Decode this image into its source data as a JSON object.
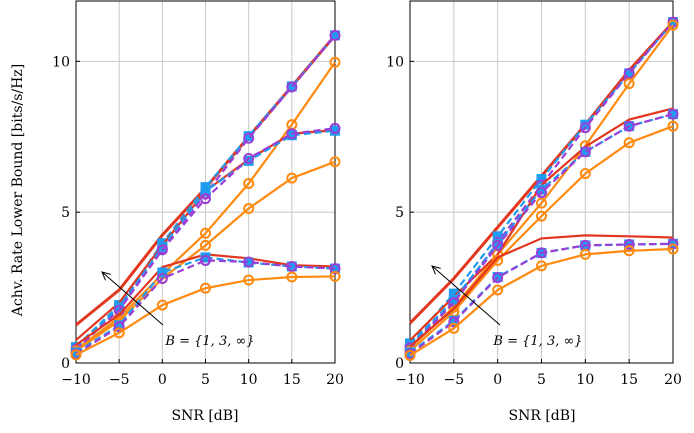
{
  "ylabel": "Achv. Rate Lower Bound [bits/s/Hz]",
  "colors": {
    "red": "#e2361f",
    "blue": "#1e9cf0",
    "purple": "#9a3fd6",
    "orange": "#ff8a10"
  },
  "chart_data": [
    {
      "type": "line",
      "xlabel": "SNR [dB]",
      "x": [
        -10,
        -5,
        0,
        5,
        10,
        15,
        20
      ],
      "xlim": [
        -10,
        20
      ],
      "ylim": [
        0,
        12
      ],
      "xticks": [
        "−10",
        "−5",
        "0",
        "5",
        "10",
        "15",
        "20"
      ],
      "yticks": [
        "0",
        "5",
        "10"
      ],
      "grid": true,
      "annotation": "B = {1, 3, ∞}",
      "series": [
        {
          "style": "red-solid",
          "values": [
            1.26,
            2.42,
            4.24,
            5.8,
            7.5,
            9.17,
            10.86
          ]
        },
        {
          "style": "blue-dashed-square",
          "values": [
            0.53,
            1.92,
            3.97,
            5.83,
            7.52,
            9.17,
            10.86
          ]
        },
        {
          "style": "purple-dashed-circle",
          "values": [
            0.45,
            1.8,
            3.8,
            5.6,
            7.45,
            9.15,
            10.86
          ]
        },
        {
          "style": "orange-solid-circle",
          "values": [
            0.45,
            1.5,
            2.95,
            4.3,
            5.95,
            7.9,
            9.97
          ]
        },
        {
          "style": "red-solid",
          "values": [
            0.76,
            2.0,
            3.9,
            5.7,
            6.75,
            7.6,
            7.72
          ]
        },
        {
          "style": "blue-dashed-square",
          "values": [
            0.5,
            1.85,
            3.85,
            5.7,
            6.7,
            7.55,
            7.7
          ]
        },
        {
          "style": "purple-dashed-circle",
          "values": [
            0.45,
            1.75,
            3.75,
            5.45,
            6.78,
            7.6,
            7.78
          ]
        },
        {
          "style": "orange-solid-circle",
          "values": [
            0.4,
            1.4,
            2.8,
            3.9,
            5.12,
            6.13,
            6.67
          ]
        },
        {
          "style": "red-solid",
          "values": [
            0.6,
            1.6,
            3.18,
            3.6,
            3.47,
            3.24,
            3.2
          ]
        },
        {
          "style": "blue-dashed-square",
          "values": [
            0.35,
            1.25,
            3.0,
            3.5,
            3.33,
            3.2,
            3.13
          ]
        },
        {
          "style": "purple-dashed-circle",
          "values": [
            0.3,
            1.2,
            2.8,
            3.4,
            3.35,
            3.2,
            3.13
          ]
        },
        {
          "style": "orange-solid-circle",
          "values": [
            0.27,
            1.0,
            1.92,
            2.48,
            2.75,
            2.85,
            2.87
          ]
        }
      ]
    },
    {
      "type": "line",
      "xlabel": "SNR [dB]",
      "x": [
        -10,
        -5,
        0,
        5,
        10,
        15,
        20
      ],
      "xlim": [
        -10,
        20
      ],
      "ylim": [
        0,
        12
      ],
      "xticks": [
        "−10",
        "−5",
        "0",
        "5",
        "10",
        "15",
        "20"
      ],
      "yticks": [
        "0",
        "5",
        "10"
      ],
      "grid": true,
      "annotation": "B = {1, 3, ∞}",
      "series": [
        {
          "style": "red-solid",
          "values": [
            1.32,
            2.8,
            4.5,
            6.2,
            7.9,
            9.7,
            11.3
          ]
        },
        {
          "style": "blue-dashed-square",
          "values": [
            0.65,
            2.3,
            4.2,
            6.1,
            7.9,
            9.6,
            11.3
          ]
        },
        {
          "style": "purple-dashed-circle",
          "values": [
            0.55,
            2.05,
            4.0,
            5.9,
            7.8,
            9.6,
            11.3
          ]
        },
        {
          "style": "orange-solid-circle",
          "values": [
            0.5,
            1.85,
            3.6,
            5.3,
            7.2,
            9.26,
            11.2
          ]
        },
        {
          "style": "red-solid",
          "values": [
            0.75,
            2.2,
            3.6,
            5.9,
            7.17,
            8.07,
            8.44
          ]
        },
        {
          "style": "blue-dashed-square",
          "values": [
            0.6,
            2.1,
            3.95,
            5.75,
            7.0,
            7.85,
            8.25
          ]
        },
        {
          "style": "purple-dashed-circle",
          "values": [
            0.5,
            2.0,
            3.9,
            5.65,
            7.0,
            7.85,
            8.25
          ]
        },
        {
          "style": "orange-solid-circle",
          "values": [
            0.4,
            1.7,
            3.4,
            4.87,
            6.28,
            7.3,
            7.85
          ]
        },
        {
          "style": "red-solid",
          "values": [
            0.55,
            1.8,
            3.5,
            4.13,
            4.23,
            4.2,
            4.16
          ]
        },
        {
          "style": "blue-dashed-square",
          "values": [
            0.35,
            1.4,
            2.85,
            3.65,
            3.9,
            3.93,
            3.95
          ]
        },
        {
          "style": "purple-dashed-circle",
          "values": [
            0.3,
            1.36,
            2.83,
            3.65,
            3.9,
            3.93,
            3.95
          ]
        },
        {
          "style": "orange-solid-circle",
          "values": [
            0.25,
            1.15,
            2.42,
            3.22,
            3.6,
            3.72,
            3.78
          ]
        }
      ]
    }
  ]
}
